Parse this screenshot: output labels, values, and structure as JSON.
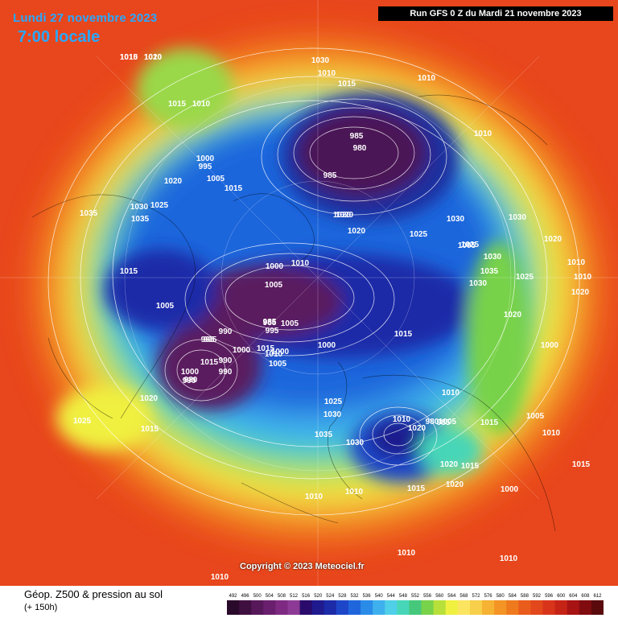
{
  "header": {
    "date_label": "Lundi 27 novembre 2023",
    "time_label": "7:00 locale",
    "run_label": "Run GFS 0 Z du Mardi 21 novembre 2023"
  },
  "copyright": "Copyright © 2023 Meteociel.fr",
  "footer": {
    "title": "Géop. Z500 & pression au sol",
    "subtitle": "(+ 150h)"
  },
  "legend": {
    "ticks": [
      "492",
      "496",
      "500",
      "504",
      "508",
      "512",
      "516",
      "520",
      "524",
      "528",
      "532",
      "536",
      "540",
      "544",
      "548",
      "552",
      "556",
      "560",
      "564",
      "568",
      "572",
      "576",
      "580",
      "584",
      "588",
      "592",
      "596",
      "600",
      "604",
      "608",
      "612"
    ],
    "colors": [
      "#2a0a2a",
      "#3f0f40",
      "#57185a",
      "#6a1f6e",
      "#7e2a83",
      "#8c3a95",
      "#2a0b6b",
      "#1f1a8e",
      "#1c2ba8",
      "#1d47c8",
      "#1f66dc",
      "#2a8be8",
      "#3fb0ee",
      "#50cfe8",
      "#47d6b8",
      "#45c87c",
      "#78d24a",
      "#b8e03a",
      "#f0f040",
      "#fbe560",
      "#f7cf4a",
      "#f6b232",
      "#f39424",
      "#ef7a1e",
      "#ea5c1c",
      "#e2481b",
      "#d8341a",
      "#c62317",
      "#a81314",
      "#800c10",
      "#5a0a0c"
    ]
  },
  "pressure_labels": [
    "1010",
    "1010",
    "1010",
    "1015",
    "1010",
    "1000",
    "1005",
    "1020",
    "1015",
    "995",
    "1030",
    "1025",
    "1035",
    "1035",
    "1015",
    "1005",
    "990",
    "995",
    "1000",
    "1005",
    "1010",
    "1015",
    "1020",
    "1000",
    "1005",
    "985",
    "980",
    "990",
    "985",
    "980",
    "985",
    "1020",
    "1020",
    "1010",
    "1030",
    "1030",
    "1025",
    "1030",
    "1035",
    "1030",
    "1025",
    "1020",
    "1015",
    "1010",
    "1020",
    "1010",
    "1000",
    "1005",
    "1010",
    "1000",
    "995",
    "990",
    "985",
    "1020",
    "1015",
    "1010",
    "1005",
    "1030",
    "1025",
    "1030",
    "1035",
    "1030",
    "1020",
    "1015",
    "1010",
    "1020",
    "1010",
    "1015",
    "1000",
    "1010",
    "1025",
    "1010",
    "1015",
    "1020",
    "1020",
    "1015",
    "1010",
    "1010",
    "1010",
    "1015",
    "990",
    "995",
    "980",
    "985",
    "1005",
    "1000",
    "1005",
    "1000",
    "1010",
    "1015",
    "1025",
    "1015",
    "1020"
  ]
}
